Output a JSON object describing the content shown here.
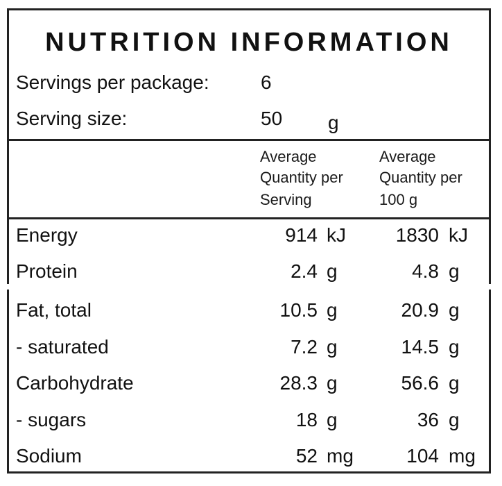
{
  "panel": {
    "title": "NUTRITION INFORMATION",
    "servings_label": "Servings per package:",
    "servings_value": "6",
    "serving_size_label": "Serving size:",
    "serving_size_value": "50",
    "serving_size_unit": "g"
  },
  "columns": {
    "per_serving": [
      "Average",
      "Quantity per",
      "Serving"
    ],
    "per_100g": [
      "Average",
      "Quantity per",
      "100 g"
    ]
  },
  "rows": [
    {
      "name": "Energy",
      "serving_value": "914",
      "serving_unit": "kJ",
      "per100_value": "1830",
      "per100_unit": "kJ"
    },
    {
      "name": "Protein",
      "serving_value": "2.4",
      "serving_unit": "g",
      "per100_value": "4.8",
      "per100_unit": "g"
    },
    {
      "name": "Fat, total",
      "serving_value": "10.5",
      "serving_unit": "g",
      "per100_value": "20.9",
      "per100_unit": "g"
    },
    {
      "name": "- saturated",
      "serving_value": "7.2",
      "serving_unit": "g",
      "per100_value": "14.5",
      "per100_unit": "g"
    },
    {
      "name": "Carbohydrate",
      "serving_value": "28.3",
      "serving_unit": "g",
      "per100_value": "56.6",
      "per100_unit": "g"
    },
    {
      "name": "- sugars",
      "serving_value": "18",
      "serving_unit": "g",
      "per100_value": "36",
      "per100_unit": "g"
    },
    {
      "name": "Sodium",
      "serving_value": "52",
      "serving_unit": "mg",
      "per100_value": "104",
      "per100_unit": "mg"
    }
  ]
}
